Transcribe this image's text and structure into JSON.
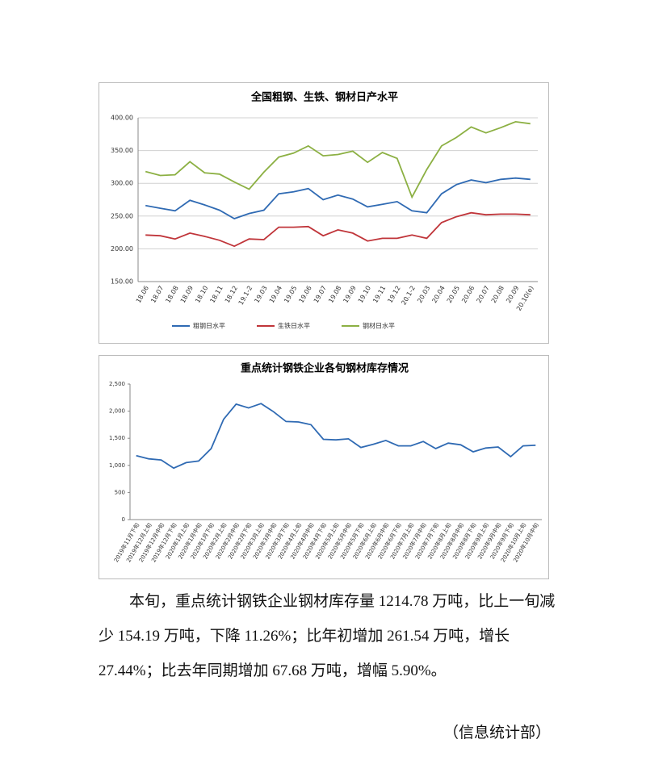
{
  "chart_data": [
    {
      "type": "line",
      "title": "全国粗钢、生铁、钢材日产水平",
      "categories": [
        "18.06",
        "18.07",
        "18.08",
        "18.09",
        "18.10",
        "18.11",
        "18.12",
        "19.1-2",
        "19.03",
        "19.04",
        "19.05",
        "19.06",
        "19.07",
        "19.08",
        "19.09",
        "19.10",
        "19.11",
        "19.12",
        "20.1-2",
        "20.03",
        "20.04",
        "20.05",
        "20.06",
        "20.07",
        "20.08",
        "20.09",
        "20.10(e)"
      ],
      "series": [
        {
          "name": "粗钢日水平",
          "color": "#2f6ab3",
          "values": [
            266,
            262,
            258,
            274,
            267,
            259,
            246,
            254,
            259,
            284,
            287,
            292,
            275,
            282,
            276,
            264,
            268,
            272,
            258,
            255,
            284,
            298,
            305,
            301,
            306,
            308,
            306
          ]
        },
        {
          "name": "生铁日水平",
          "color": "#c0353a",
          "values": [
            221,
            220,
            215,
            224,
            219,
            213,
            204,
            215,
            214,
            233,
            233,
            234,
            220,
            229,
            224,
            212,
            216,
            216,
            221,
            216,
            240,
            249,
            255,
            252,
            253,
            253,
            252
          ]
        },
        {
          "name": "钢材日水平",
          "color": "#8cb043",
          "values": [
            318,
            312,
            313,
            333,
            316,
            314,
            302,
            291,
            317,
            340,
            346,
            357,
            342,
            344,
            349,
            332,
            347,
            338,
            279,
            321,
            357,
            370,
            386,
            377,
            385,
            394,
            391
          ]
        }
      ],
      "ylim": [
        150,
        400
      ],
      "yticks": [
        {
          "value": 150,
          "label": "150.00"
        },
        {
          "value": 200,
          "label": "200.00"
        },
        {
          "value": 250,
          "label": "250.00"
        },
        {
          "value": 300,
          "label": "300.00"
        },
        {
          "value": 350,
          "label": "350.00"
        },
        {
          "value": 400,
          "label": "400.00"
        }
      ],
      "grid": true,
      "legend": "bottom"
    },
    {
      "type": "line",
      "title": "重点统计钢铁企业各旬钢材库存情况",
      "categories": [
        "2019年11月下旬",
        "2019年12月上旬",
        "2019年12月中旬",
        "2019年12月下旬",
        "2020年1月上旬",
        "2020年1月中旬",
        "2020年1月下旬",
        "2020年2月上旬",
        "2020年2月中旬",
        "2020年2月下旬",
        "2020年3月上旬",
        "2020年3月中旬",
        "2020年3月下旬",
        "2020年4月上旬",
        "2020年4月中旬",
        "2020年4月下旬",
        "2020年5月上旬",
        "2020年5月中旬",
        "2020年5月下旬",
        "2020年6月上旬",
        "2020年6月中旬",
        "2020年6月下旬",
        "2020年7月上旬",
        "2020年7月中旬",
        "2020年7月下旬",
        "2020年8月上旬",
        "2020年8月中旬",
        "2020年8月下旬",
        "2020年9月上旬",
        "2020年9月中旬",
        "2020年9月下旬",
        "2020年10月上旬",
        "2020年10月中旬"
      ],
      "values": [
        1180,
        1120,
        1100,
        950,
        1050,
        1080,
        1310,
        1850,
        2130,
        2060,
        2140,
        1990,
        1810,
        1800,
        1750,
        1480,
        1470,
        1490,
        1330,
        1390,
        1460,
        1360,
        1360,
        1440,
        1310,
        1410,
        1380,
        1250,
        1320,
        1340,
        1160,
        1360,
        1370
      ],
      "color": "#2f6ab3",
      "ylim": [
        0,
        2500
      ],
      "yticks": [
        0,
        500,
        {
          "value": 1000,
          "label": "1,000"
        },
        {
          "value": 1500,
          "label": "1,500"
        },
        {
          "value": 2000,
          "label": "2,000"
        },
        {
          "value": 2500,
          "label": "2,500"
        }
      ],
      "grid": false
    }
  ],
  "paragraph": "本旬，重点统计钢铁企业钢材库存量 1214.78 万吨，比上一旬减少 154.19 万吨，下降 11.26%；比年初增加 261.54 万吨，增长 27.44%；比去年同期增加 67.68 万吨，增幅 5.90%。",
  "footer": "（信息统计部）"
}
